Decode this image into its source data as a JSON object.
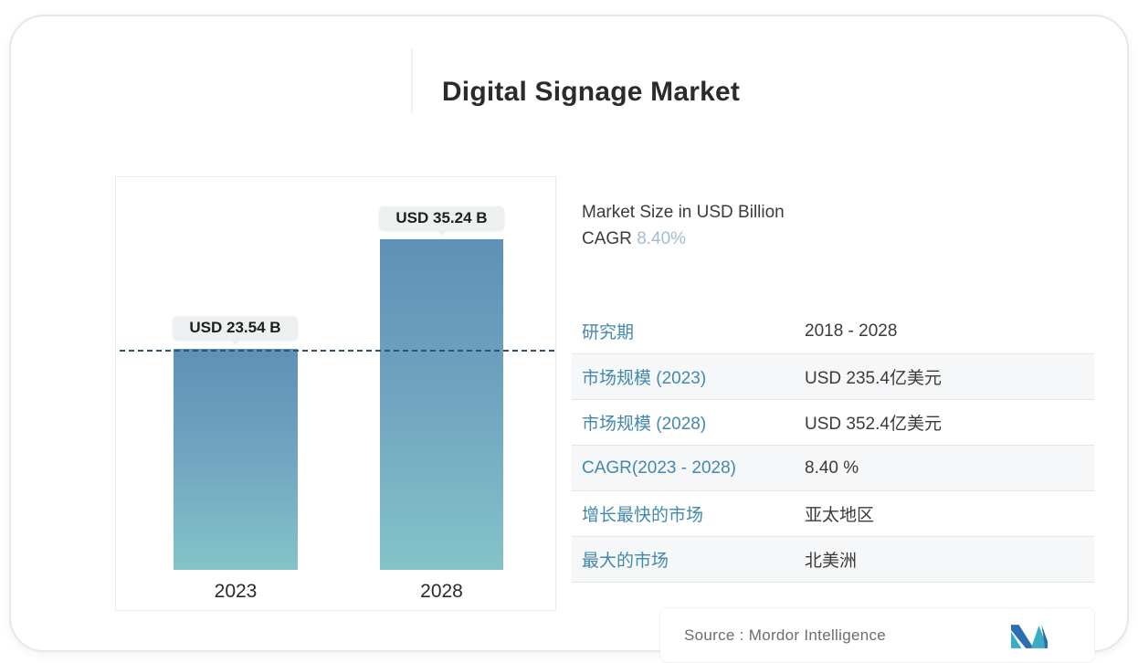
{
  "title": "Digital Signage Market",
  "chart_data": {
    "type": "bar",
    "title": "Digital Signage Market",
    "ylabel": "Market Size in USD Billion",
    "xlabel": "",
    "categories": [
      "2023",
      "2028"
    ],
    "values": [
      23.54,
      35.24
    ],
    "value_labels": [
      "USD 23.54 B",
      "USD 35.24 B"
    ],
    "ylim": [
      0,
      40
    ],
    "grid": false,
    "legend": false,
    "reference_line": {
      "value": 23.54,
      "style": "dashed",
      "color": "#2f5368"
    },
    "bar_gradient_top": "#5e91b7",
    "bar_gradient_bottom": "#84c3c9"
  },
  "summary": {
    "line1": "Market Size in USD Billion",
    "cagr_label": "CAGR",
    "cagr_value": "8.40%",
    "cagr_value_color": "#a3bcd3"
  },
  "table": {
    "label_color": "#4289ad",
    "value_color": "#3b3b3b",
    "rows": [
      {
        "label": "研究期",
        "value": "2018 - 2028"
      },
      {
        "label": "市场规模 (2023)",
        "value": "USD 235.4亿美元"
      },
      {
        "label": "市场规模 (2028)",
        "value": "USD 352.4亿美元"
      },
      {
        "label": "CAGR(2023 - 2028)",
        "value": "8.40 %"
      },
      {
        "label": "增长最快的市场",
        "value": "亚太地区"
      },
      {
        "label": "最大的市场",
        "value": "北美洲"
      }
    ]
  },
  "footer": {
    "source_label": "Source :  Mordor Intelligence",
    "logo_colors": {
      "blue": "#2b6fb0",
      "teal": "#3aadc4"
    }
  }
}
